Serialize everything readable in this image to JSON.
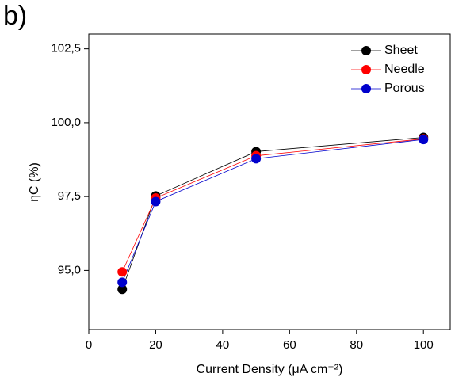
{
  "chart_data": {
    "type": "line",
    "panel_label": "b)",
    "x_label": "Current Density (μA cm⁻²)",
    "y_label": "ηC (%)",
    "x": [
      10,
      20,
      50,
      100
    ],
    "series": [
      {
        "name": "Sheet",
        "color": "#000000",
        "values": [
          94.36,
          97.52,
          99.02,
          99.5
        ]
      },
      {
        "name": "Needle",
        "color": "#ff0000",
        "values": [
          94.95,
          97.45,
          98.88,
          99.45
        ]
      },
      {
        "name": "Porous",
        "color": "#0000cc",
        "values": [
          94.6,
          97.33,
          98.78,
          99.43
        ]
      }
    ],
    "xlim": [
      0,
      108
    ],
    "xticks": [
      0,
      20,
      40,
      60,
      80,
      100
    ],
    "ylim": [
      93,
      103
    ],
    "yticks": [
      {
        "value": 95,
        "label": "95,0"
      },
      {
        "value": 97.5,
        "label": "97,5"
      },
      {
        "value": 100,
        "label": "100,0"
      },
      {
        "value": 102.5,
        "label": "102,5"
      }
    ],
    "legend": "upper right"
  }
}
